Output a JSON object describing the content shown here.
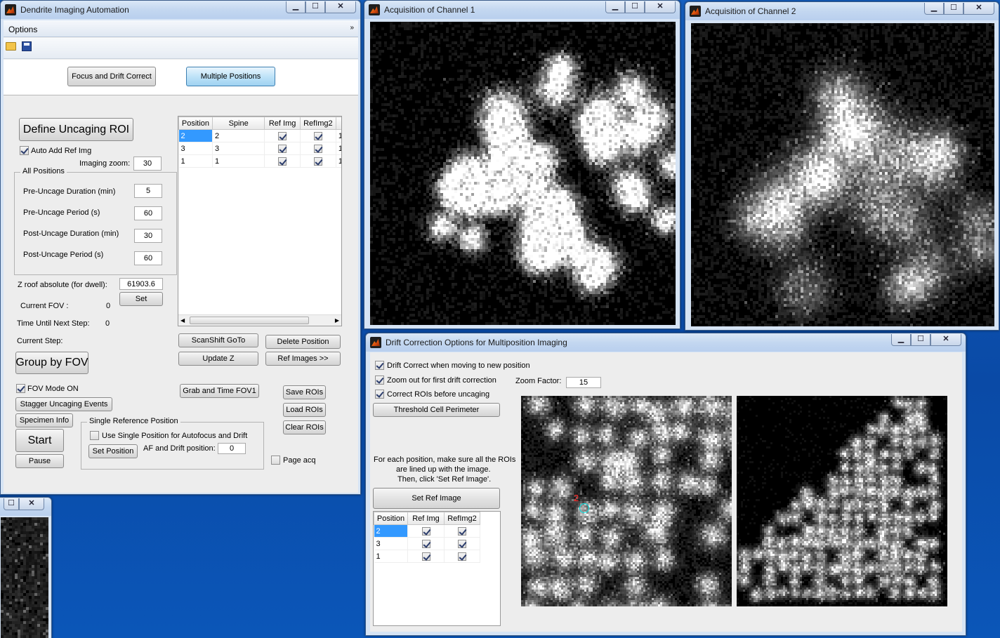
{
  "main_window": {
    "title": "Dendrite Imaging Automation",
    "menu_options": "Options",
    "tab_focus": "Focus and Drift Correct",
    "tab_multiple": "Multiple Positions",
    "define_roi": "Define Uncaging ROI",
    "auto_add_ref": "Auto Add Ref Img",
    "imaging_zoom_label": "Imaging zoom:",
    "imaging_zoom_value": "30",
    "all_positions_title": "All Positions",
    "pre_duration_label": "Pre-Uncage Duration (min)",
    "pre_duration_value": "5",
    "pre_period_label": "Pre-Uncage Period (s)",
    "pre_period_value": "60",
    "post_duration_label": "Post-Uncage Duration (min)",
    "post_duration_value": "30",
    "post_period_label": "Post-Uncage Period (s)",
    "post_period_value": "60",
    "zroof_label": "Z roof absolute (for dwell):",
    "zroof_value": "61903.6",
    "set_label": "Set",
    "current_fov_label": "Current FOV :",
    "current_fov_value": "0",
    "time_next_label": "Time Until Next Step:",
    "time_next_value": "0",
    "current_step_label": "Current Step:",
    "group_by_fov": "Group by FOV",
    "fov_mode": "FOV Mode ON",
    "stagger": "Stagger Uncaging Events",
    "specimen_info": "Specimen Info",
    "start": "Start",
    "pause": "Pause",
    "single_ref_title": "Single Reference Position",
    "use_single": "Use Single Position for Autofocus and Drift",
    "set_position": "Set Position",
    "af_drift_label": "AF and Drift position:",
    "af_drift_value": "0",
    "table_headers": [
      "Position",
      "Spine",
      "Ref Img",
      "RefImg2",
      ""
    ],
    "table_rows": [
      {
        "position": "2",
        "spine": "2",
        "extra": "1"
      },
      {
        "position": "3",
        "spine": "3",
        "extra": "1"
      },
      {
        "position": "1",
        "spine": "1",
        "extra": "1"
      }
    ],
    "scanshift": "ScanShift GoTo",
    "delete_position": "Delete Position",
    "update_z": "Update Z",
    "ref_images": "Ref Images >>",
    "grab_time": "Grab and Time FOV1",
    "save_rois": "Save ROIs",
    "load_rois": "Load ROIs",
    "clear_rois": "Clear ROIs",
    "page_acq": "Page acq"
  },
  "channel1": {
    "title": "Acquisition of Channel 1"
  },
  "channel2": {
    "title": "Acquisition of Channel 2"
  },
  "drift_window": {
    "title": "Drift Correction Options for Multiposition Imaging",
    "drift_correct": "Drift Correct when moving to new position",
    "zoom_out": "Zoom out for first drift correction",
    "correct_rois": "Correct ROIs before uncaging",
    "zoom_factor_label": "Zoom Factor:",
    "zoom_factor_value": "15",
    "threshold": "Threshold Cell Perimeter",
    "instructions_1": "For each position, make sure all the ROIs",
    "instructions_2": "are lined up with the image.",
    "instructions_3": "Then, click 'Set Ref Image'.",
    "set_ref_image": "Set Ref Image",
    "roi_label": "2",
    "table_headers": [
      "Position",
      "Ref Img",
      "RefImg2"
    ],
    "table_rows": [
      {
        "position": "2"
      },
      {
        "position": "3"
      },
      {
        "position": "1"
      }
    ]
  },
  "window_controls": {
    "minimize": "▁",
    "maximize": "☐",
    "close": "✕"
  },
  "colors": {
    "accent": "#3399ff",
    "roi_circle": "#00e0e0",
    "roi_label": "#ff2020"
  }
}
